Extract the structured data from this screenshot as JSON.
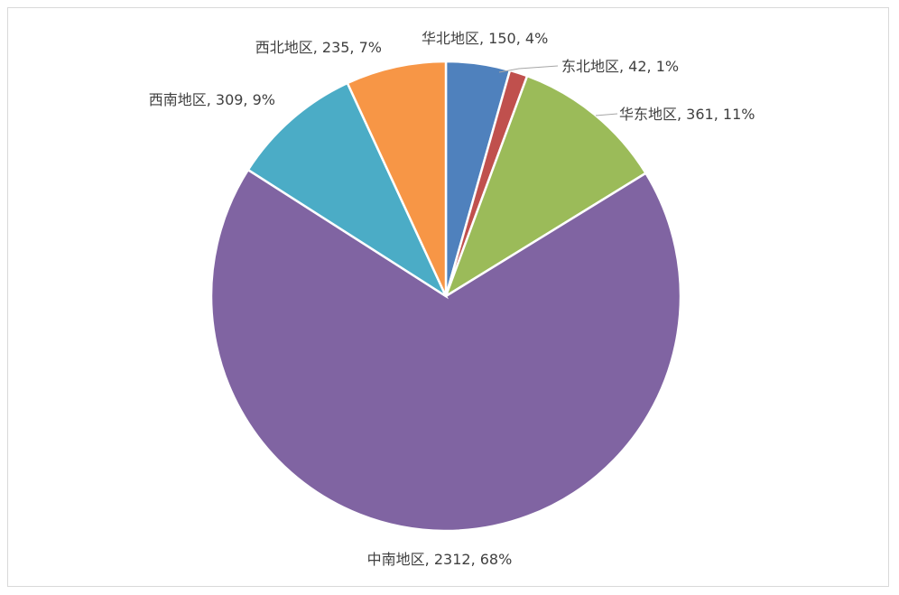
{
  "chart_data": {
    "type": "pie",
    "title": "",
    "start_angle": "12 o'clock, clockwise",
    "slices": [
      {
        "label": "华北地区",
        "value": 150,
        "percent": "4%",
        "color": "#4F81BD"
      },
      {
        "label": "东北地区",
        "value": 42,
        "percent": "1%",
        "color": "#C0504D"
      },
      {
        "label": "华东地区",
        "value": 361,
        "percent": "11%",
        "color": "#9BBB59"
      },
      {
        "label": "中南地区",
        "value": 2312,
        "percent": "68%",
        "color": "#8064A2"
      },
      {
        "label": "西南地区",
        "value": 309,
        "percent": "9%",
        "color": "#4BACC6"
      },
      {
        "label": "西北地区",
        "value": 235,
        "percent": "7%",
        "color": "#F79646"
      }
    ],
    "legend": "none",
    "data_labels": "category, value, percent"
  }
}
